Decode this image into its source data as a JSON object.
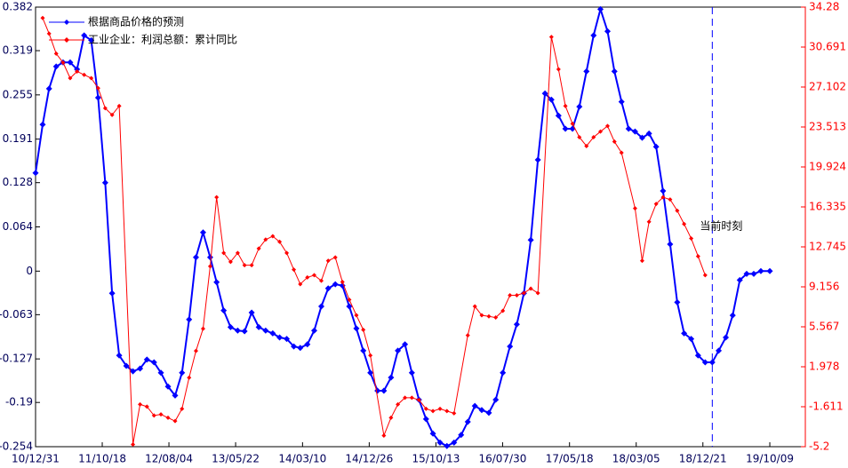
{
  "chart_data": {
    "type": "line",
    "xlim": [
      "10/12/31",
      "20/03/12"
    ],
    "xticks": [
      "10/12/31",
      "11/10/18",
      "12/08/04",
      "13/05/22",
      "14/03/10",
      "14/12/26",
      "15/10/13",
      "16/07/30",
      "17/05/18",
      "18/03/05",
      "18/12/21",
      "19/10/09"
    ],
    "ylim": [
      -0.254,
      0.382
    ],
    "yticks": [
      -0.254,
      -0.19,
      -0.127,
      -0.063,
      0,
      0.064,
      0.128,
      0.191,
      0.255,
      0.319,
      0.382
    ],
    "y2lim": [
      -5.2,
      34.28
    ],
    "y2ticks": [
      -5.2,
      -1.611,
      1.978,
      5.567,
      9.156,
      12.745,
      16.335,
      19.924,
      23.513,
      27.102,
      30.691,
      34.28
    ],
    "legend": "upper left",
    "annotations": [
      {
        "text": "当前时刻",
        "x": "19/01/31"
      }
    ],
    "series": [
      {
        "name": "根据商品价格的预测",
        "color": "#0000ff",
        "x": [
          "10/12/31",
          "11/01/31",
          "11/02/28",
          "11/03/31",
          "11/04/30",
          "11/05/31",
          "11/06/30",
          "11/07/31",
          "11/08/31",
          "11/09/30",
          "11/10/31",
          "11/11/30",
          "11/12/31",
          "12/01/31",
          "12/02/29",
          "12/03/31",
          "12/04/30",
          "12/05/31",
          "12/06/30",
          "12/07/31",
          "12/08/31",
          "12/09/30",
          "12/10/31",
          "12/11/30",
          "12/12/31",
          "13/01/31",
          "13/02/28",
          "13/03/31",
          "13/04/30",
          "13/05/31",
          "13/06/30",
          "13/07/31",
          "13/08/31",
          "13/09/30",
          "13/10/31",
          "13/11/30",
          "13/12/31",
          "14/01/31",
          "14/02/28",
          "14/03/31",
          "14/04/30",
          "14/05/31",
          "14/06/30",
          "14/07/31",
          "14/08/31",
          "14/09/30",
          "14/10/31",
          "14/11/30",
          "14/12/31",
          "15/01/31",
          "15/02/28",
          "15/03/31",
          "15/04/30",
          "15/05/31",
          "15/06/30",
          "15/07/31",
          "15/08/31",
          "15/09/30",
          "15/10/31",
          "15/11/30",
          "15/12/31",
          "16/01/31",
          "16/02/29",
          "16/03/31",
          "16/04/30",
          "16/05/31",
          "16/06/30",
          "16/07/31",
          "16/08/31",
          "16/09/30",
          "16/10/31",
          "16/11/30",
          "16/12/31",
          "17/01/31",
          "17/02/28",
          "17/03/31",
          "17/04/30",
          "17/05/31",
          "17/06/30",
          "17/07/31",
          "17/08/31",
          "17/09/30",
          "17/10/31",
          "17/11/30",
          "17/12/31",
          "18/01/31",
          "18/02/28",
          "18/03/31",
          "18/04/30",
          "18/05/31",
          "18/06/30",
          "18/07/31",
          "18/08/31",
          "18/09/30",
          "18/10/31",
          "18/11/30",
          "18/12/31",
          "19/01/31",
          "19/02/28",
          "19/03/31",
          "19/04/30",
          "19/05/31",
          "19/06/30",
          "19/07/31",
          "19/08/31",
          "19/10/09"
        ],
        "values": [
          0.142,
          0.212,
          0.264,
          0.296,
          0.302,
          0.302,
          0.292,
          0.341,
          0.334,
          0.251,
          0.128,
          -0.032,
          -0.122,
          -0.137,
          -0.145,
          -0.141,
          -0.128,
          -0.132,
          -0.147,
          -0.167,
          -0.18,
          -0.147,
          -0.07,
          0.02,
          0.056,
          0.02,
          -0.016,
          -0.057,
          -0.081,
          -0.086,
          -0.087,
          -0.06,
          -0.081,
          -0.086,
          -0.09,
          -0.096,
          -0.098,
          -0.109,
          -0.111,
          -0.106,
          -0.086,
          -0.051,
          -0.025,
          -0.019,
          -0.021,
          -0.051,
          -0.083,
          -0.115,
          -0.147,
          -0.173,
          -0.173,
          -0.154,
          -0.115,
          -0.106,
          -0.147,
          -0.186,
          -0.214,
          -0.235,
          -0.248,
          -0.253,
          -0.248,
          -0.237,
          -0.218,
          -0.195,
          -0.201,
          -0.205,
          -0.186,
          -0.147,
          -0.109,
          -0.077,
          -0.032,
          0.045,
          0.161,
          0.257,
          0.248,
          0.225,
          0.206,
          0.206,
          0.238,
          0.289,
          0.341,
          0.379,
          0.347,
          0.289,
          0.245,
          0.206,
          0.202,
          0.193,
          0.199,
          0.18,
          0.116,
          0.039,
          -0.045,
          -0.09,
          -0.098,
          -0.122,
          -0.132,
          -0.132,
          -0.115,
          -0.096,
          -0.064,
          -0.013,
          -0.004,
          -0.004,
          0.0,
          0.0
        ]
      },
      {
        "name": "工业企业：利润总额：累计同比",
        "color": "#ff0000",
        "axis": "y2",
        "x": [
          "11/01/31",
          "11/02/28",
          "11/03/31",
          "11/04/30",
          "11/05/31",
          "11/06/30",
          "11/07/31",
          "11/08/31",
          "11/09/30",
          "11/10/31",
          "11/11/30",
          "11/12/31",
          "12/02/29",
          "12/03/31",
          "12/04/30",
          "12/05/31",
          "12/06/30",
          "12/07/31",
          "12/08/31",
          "12/09/30",
          "12/10/31",
          "12/11/30",
          "12/12/31",
          "13/01/31",
          "13/02/28",
          "13/03/31",
          "13/04/30",
          "13/05/31",
          "13/06/30",
          "13/07/31",
          "13/08/31",
          "13/09/30",
          "13/10/31",
          "13/11/30",
          "13/12/31",
          "14/01/31",
          "14/02/28",
          "14/03/31",
          "14/04/30",
          "14/05/31",
          "14/06/30",
          "14/07/31",
          "14/08/31",
          "14/09/30",
          "14/10/31",
          "14/11/30",
          "14/12/31",
          "15/02/28",
          "15/03/31",
          "15/04/30",
          "15/05/31",
          "15/06/30",
          "15/07/31",
          "15/08/31",
          "15/09/30",
          "15/10/31",
          "15/11/30",
          "15/12/31",
          "16/02/29",
          "16/03/31",
          "16/04/30",
          "16/05/31",
          "16/06/30",
          "16/07/31",
          "16/08/31",
          "16/09/30",
          "16/10/31",
          "16/11/30",
          "16/12/31",
          "17/02/28",
          "17/03/31",
          "17/04/30",
          "17/05/31",
          "17/06/30",
          "17/07/31",
          "17/08/31",
          "17/09/30",
          "17/10/31",
          "17/11/30",
          "17/12/31",
          "18/02/28",
          "18/03/31",
          "18/04/30",
          "18/05/31",
          "18/06/30",
          "18/07/31",
          "18/08/31",
          "18/09/30",
          "18/10/31",
          "18/11/30",
          "18/12/31"
        ],
        "values": [
          33.3,
          31.9,
          30.1,
          29.3,
          27.9,
          28.5,
          28.2,
          27.9,
          27.0,
          25.2,
          24.6,
          25.4,
          -5.0,
          -1.4,
          -1.6,
          -2.4,
          -2.3,
          -2.6,
          -2.9,
          -1.8,
          1.0,
          3.4,
          5.4,
          11.0,
          17.2,
          12.2,
          11.4,
          12.2,
          11.1,
          11.1,
          12.6,
          13.4,
          13.7,
          13.2,
          12.2,
          10.7,
          9.4,
          10.0,
          10.2,
          9.7,
          11.5,
          11.8,
          9.6,
          8.0,
          6.6,
          5.3,
          3.0,
          -4.2,
          -2.6,
          -1.4,
          -0.8,
          -0.8,
          -1.0,
          -1.8,
          -2.0,
          -1.8,
          -2.0,
          -2.2,
          4.8,
          7.4,
          6.6,
          6.5,
          6.4,
          7.0,
          8.4,
          8.4,
          8.6,
          9.0,
          8.6,
          31.6,
          28.7,
          25.4,
          23.8,
          22.6,
          21.8,
          22.6,
          23.1,
          23.6,
          22.2,
          21.2,
          16.2,
          11.5,
          15.0,
          16.6,
          17.2,
          17.0,
          16.0,
          14.8,
          13.5,
          11.9,
          10.2
        ]
      }
    ]
  }
}
